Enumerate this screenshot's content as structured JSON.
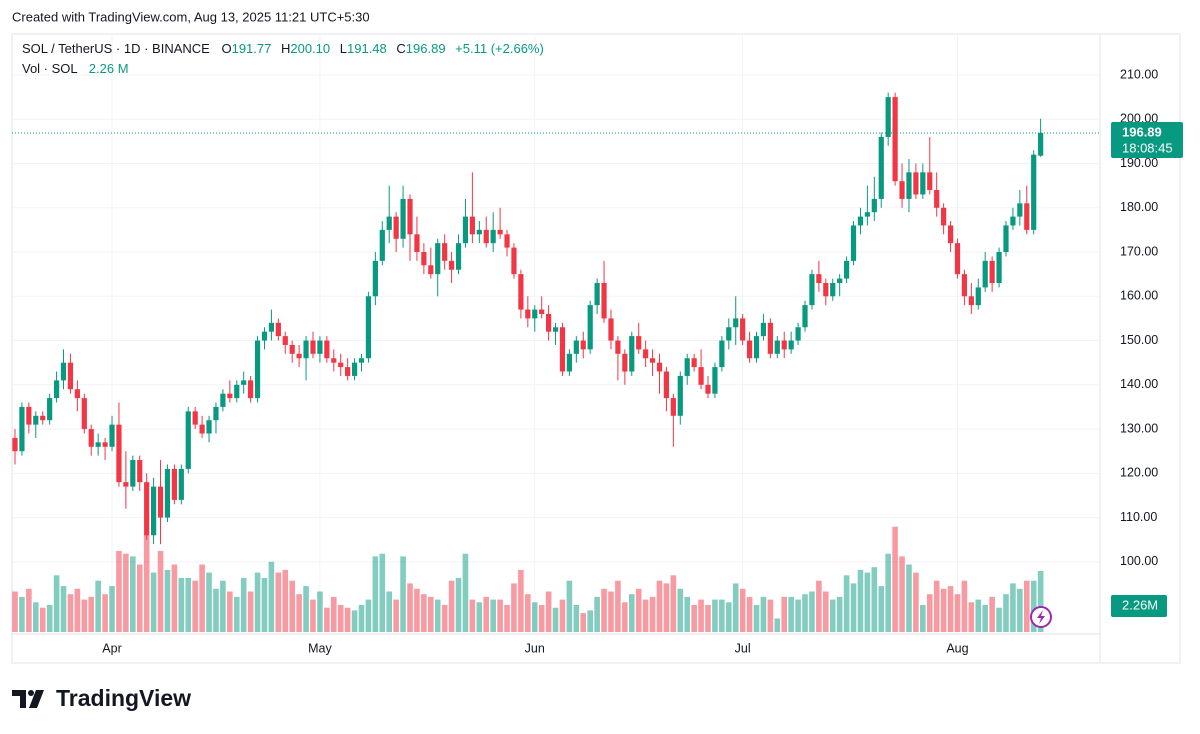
{
  "header": {
    "created": "Created with TradingView.com, Aug 13, 2025 11:21 UTC+5:30",
    "symbol": "SOL / TetherUS · 1D · BINANCE",
    "open_label": "O",
    "open": "191.77",
    "high_label": "H",
    "high": "200.10",
    "low_label": "L",
    "low": "191.48",
    "close_label": "C",
    "close": "196.89",
    "change": "+5.11 (+2.66%)",
    "volume_label": "Vol · SOL",
    "volume": "2.26 M"
  },
  "brand": "TradingView",
  "chart_data": {
    "type": "candlestick",
    "up_color": "#089981",
    "down_color": "#f23645",
    "ylim": [
      83.7,
      217.9
    ],
    "yticks": [
      {
        "value": 100,
        "label": "100.00"
      },
      {
        "value": 110,
        "label": "110.00"
      },
      {
        "value": 120,
        "label": "120.00"
      },
      {
        "value": 130,
        "label": "130.00"
      },
      {
        "value": 140,
        "label": "140.00"
      },
      {
        "value": 150,
        "label": "150.00"
      },
      {
        "value": 160,
        "label": "160.00"
      },
      {
        "value": 170,
        "label": "170.00"
      },
      {
        "value": 180,
        "label": "180.00"
      },
      {
        "value": 190,
        "label": "190.00"
      },
      {
        "value": 200,
        "label": "200.00"
      },
      {
        "value": 210,
        "label": "210.00"
      }
    ],
    "xticks": [
      {
        "value": 14,
        "label": "Apr"
      },
      {
        "value": 44,
        "label": "May"
      },
      {
        "value": 75,
        "label": "Jun"
      },
      {
        "value": 105,
        "label": "Jul"
      },
      {
        "value": 136,
        "label": "Aug"
      }
    ],
    "countdown": "18:08:45",
    "volume_ylim": [
      0,
      4
    ],
    "volume_value_label": "2.26M",
    "candles": [
      [
        128,
        130,
        122,
        125
      ],
      [
        125,
        136,
        124,
        135
      ],
      [
        135,
        136,
        129,
        131
      ],
      [
        131,
        134,
        128,
        133
      ],
      [
        133,
        134,
        131,
        132
      ],
      [
        132,
        138,
        131,
        137
      ],
      [
        137,
        143,
        136,
        141
      ],
      [
        141,
        148,
        139,
        145
      ],
      [
        145,
        147,
        138,
        139
      ],
      [
        139,
        141,
        134,
        137
      ],
      [
        137,
        138,
        129,
        130
      ],
      [
        130,
        131,
        124,
        126
      ],
      [
        126,
        129,
        124,
        127
      ],
      [
        127,
        128,
        123,
        126
      ],
      [
        126,
        133,
        125,
        131
      ],
      [
        131,
        136,
        117,
        118
      ],
      [
        118,
        125,
        112,
        117
      ],
      [
        117,
        124,
        116,
        123
      ],
      [
        123,
        124,
        116,
        118
      ],
      [
        118,
        120,
        105,
        106
      ],
      [
        106,
        119,
        104,
        117
      ],
      [
        117,
        123,
        104,
        110
      ],
      [
        110,
        122,
        109,
        121
      ],
      [
        121,
        122,
        113,
        114
      ],
      [
        114,
        122,
        113,
        121
      ],
      [
        121,
        135,
        120,
        134
      ],
      [
        134,
        135,
        130,
        131
      ],
      [
        131,
        133,
        128,
        129
      ],
      [
        129,
        133,
        127,
        132
      ],
      [
        132,
        136,
        129,
        135
      ],
      [
        135,
        139,
        134,
        138
      ],
      [
        138,
        141,
        136,
        137
      ],
      [
        137,
        141,
        136,
        140
      ],
      [
        140,
        143,
        138,
        141
      ],
      [
        141,
        142,
        136,
        137
      ],
      [
        137,
        151,
        136,
        150
      ],
      [
        150,
        153,
        148,
        152
      ],
      [
        152,
        157,
        150,
        154
      ],
      [
        154,
        155,
        150,
        151
      ],
      [
        151,
        152,
        147,
        149
      ],
      [
        149,
        150,
        145,
        147
      ],
      [
        147,
        149,
        144,
        146
      ],
      [
        146,
        151,
        141,
        150
      ],
      [
        150,
        152,
        146,
        147
      ],
      [
        147,
        151,
        145,
        150
      ],
      [
        150,
        151,
        145,
        146
      ],
      [
        146,
        148,
        143,
        145
      ],
      [
        145,
        147,
        142,
        144
      ],
      [
        144,
        146,
        141,
        142
      ],
      [
        142,
        146,
        141,
        145
      ],
      [
        145,
        147,
        143,
        146
      ],
      [
        146,
        161,
        145,
        160
      ],
      [
        160,
        170,
        158,
        168
      ],
      [
        168,
        177,
        167,
        175
      ],
      [
        175,
        185,
        172,
        178
      ],
      [
        178,
        179,
        170,
        173
      ],
      [
        173,
        185,
        171,
        182
      ],
      [
        182,
        183,
        168,
        174
      ],
      [
        174,
        178,
        168,
        170
      ],
      [
        170,
        172,
        165,
        167
      ],
      [
        167,
        171,
        164,
        165
      ],
      [
        165,
        173,
        160,
        172
      ],
      [
        172,
        174,
        166,
        168
      ],
      [
        168,
        170,
        163,
        166
      ],
      [
        166,
        174,
        165,
        172
      ],
      [
        172,
        182,
        171,
        178
      ],
      [
        178,
        188,
        172,
        174
      ],
      [
        174,
        177,
        172,
        175
      ],
      [
        175,
        178,
        171,
        172
      ],
      [
        172,
        179,
        170,
        175
      ],
      [
        175,
        180,
        173,
        174
      ],
      [
        174,
        175,
        169,
        171
      ],
      [
        171,
        172,
        164,
        165
      ],
      [
        165,
        166,
        155,
        157
      ],
      [
        157,
        160,
        153,
        155
      ],
      [
        155,
        158,
        152,
        157
      ],
      [
        157,
        160,
        155,
        156
      ],
      [
        156,
        158,
        150,
        152
      ],
      [
        152,
        154,
        149,
        153
      ],
      [
        153,
        154,
        142,
        143
      ],
      [
        143,
        148,
        142,
        147
      ],
      [
        147,
        151,
        145,
        150
      ],
      [
        150,
        152,
        146,
        148
      ],
      [
        148,
        159,
        147,
        158
      ],
      [
        158,
        164,
        156,
        163
      ],
      [
        163,
        168,
        154,
        155
      ],
      [
        155,
        157,
        148,
        150
      ],
      [
        150,
        151,
        141,
        147
      ],
      [
        147,
        148,
        140,
        143
      ],
      [
        143,
        152,
        142,
        151
      ],
      [
        151,
        154,
        147,
        148
      ],
      [
        148,
        150,
        144,
        146
      ],
      [
        146,
        148,
        142,
        145
      ],
      [
        145,
        147,
        138,
        143
      ],
      [
        143,
        144,
        134,
        137
      ],
      [
        137,
        138,
        126,
        133
      ],
      [
        133,
        143,
        131,
        142
      ],
      [
        142,
        147,
        140,
        146
      ],
      [
        146,
        147,
        143,
        144
      ],
      [
        144,
        148,
        139,
        140
      ],
      [
        140,
        142,
        137,
        138
      ],
      [
        138,
        145,
        137,
        144
      ],
      [
        144,
        151,
        143,
        150
      ],
      [
        150,
        155,
        148,
        153
      ],
      [
        153,
        160,
        149,
        155
      ],
      [
        155,
        156,
        149,
        150
      ],
      [
        150,
        152,
        145,
        146
      ],
      [
        146,
        152,
        145,
        151
      ],
      [
        151,
        156,
        150,
        154
      ],
      [
        154,
        155,
        146,
        147
      ],
      [
        147,
        151,
        146,
        150
      ],
      [
        150,
        152,
        146,
        148
      ],
      [
        148,
        152,
        147,
        150
      ],
      [
        150,
        154,
        149,
        153
      ],
      [
        153,
        159,
        152,
        158
      ],
      [
        158,
        166,
        157,
        165
      ],
      [
        165,
        168,
        161,
        163
      ],
      [
        163,
        164,
        158,
        160
      ],
      [
        160,
        164,
        159,
        163
      ],
      [
        163,
        165,
        160,
        164
      ],
      [
        164,
        169,
        163,
        168
      ],
      [
        168,
        177,
        167,
        176
      ],
      [
        176,
        180,
        174,
        178
      ],
      [
        178,
        185,
        176,
        179
      ],
      [
        179,
        187,
        177,
        182
      ],
      [
        182,
        197,
        180,
        196
      ],
      [
        196,
        206,
        194,
        205
      ],
      [
        205,
        206,
        185,
        186
      ],
      [
        186,
        190,
        180,
        182
      ],
      [
        182,
        191,
        179,
        188
      ],
      [
        188,
        190,
        182,
        183
      ],
      [
        183,
        190,
        182,
        188
      ],
      [
        188,
        196,
        183,
        184
      ],
      [
        184,
        188,
        178,
        180
      ],
      [
        180,
        181,
        174,
        176
      ],
      [
        176,
        177,
        170,
        172
      ],
      [
        172,
        173,
        164,
        165
      ],
      [
        165,
        166,
        158,
        160
      ],
      [
        160,
        163,
        156,
        158
      ],
      [
        158,
        164,
        157,
        162
      ],
      [
        162,
        170,
        161,
        168
      ],
      [
        168,
        169,
        161,
        163
      ],
      [
        163,
        171,
        162,
        170
      ],
      [
        170,
        177,
        169,
        176
      ],
      [
        176,
        180,
        175,
        178
      ],
      [
        178,
        184,
        176,
        181
      ],
      [
        181,
        185,
        174,
        175
      ],
      [
        175,
        193,
        174,
        192
      ],
      [
        191.77,
        200.1,
        191.48,
        196.89
      ]
    ],
    "volumes": [
      1.5,
      1.3,
      1.6,
      1.1,
      0.9,
      1.0,
      2.1,
      1.7,
      1.4,
      1.6,
      1.2,
      1.3,
      1.9,
      1.4,
      1.7,
      3.0,
      2.9,
      2.8,
      2.5,
      3.6,
      2.2,
      3.0,
      2.3,
      2.5,
      2.0,
      2.0,
      1.9,
      2.5,
      2.2,
      1.6,
      1.9,
      1.5,
      1.3,
      2.0,
      1.5,
      2.2,
      2.0,
      2.6,
      2.2,
      2.3,
      1.9,
      1.4,
      1.7,
      1.2,
      1.5,
      0.9,
      1.3,
      1.0,
      0.9,
      0.8,
      1.0,
      1.2,
      2.8,
      2.9,
      1.5,
      1.2,
      2.8,
      1.8,
      1.6,
      1.4,
      1.3,
      1.2,
      1.0,
      1.9,
      2.0,
      2.9,
      1.2,
      1.1,
      1.3,
      1.2,
      1.2,
      1.0,
      1.8,
      2.3,
      1.4,
      1.1,
      1.0,
      1.5,
      0.9,
      1.2,
      1.9,
      1.0,
      0.7,
      0.8,
      1.3,
      1.6,
      1.5,
      1.9,
      1.1,
      1.4,
      1.6,
      1.2,
      1.3,
      1.9,
      1.8,
      2.1,
      1.6,
      1.3,
      1.0,
      1.2,
      1.0,
      1.2,
      1.2,
      1.1,
      1.8,
      1.6,
      1.3,
      1.0,
      1.3,
      1.2,
      0.5,
      1.3,
      1.3,
      1.2,
      1.4,
      1.5,
      1.9,
      1.5,
      1.2,
      1.3,
      2.1,
      1.8,
      2.3,
      2.2,
      2.4,
      1.7,
      2.9,
      3.9,
      2.8,
      2.5,
      2.2,
      1.0,
      1.4,
      1.9,
      1.6,
      1.7,
      1.4,
      1.9,
      1.1,
      1.2,
      1.0,
      1.3,
      0.9,
      1.4,
      1.8,
      1.6,
      1.9,
      1.9,
      2.26
    ]
  }
}
